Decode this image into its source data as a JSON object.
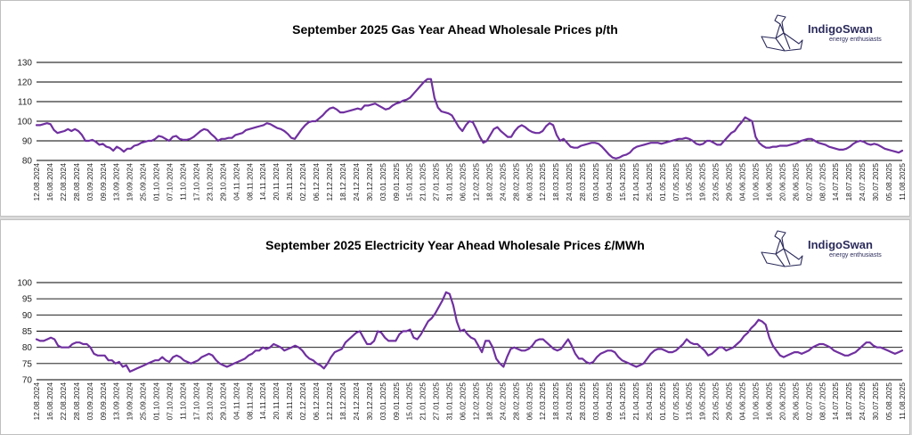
{
  "brand": {
    "name": "IndigoSwan",
    "tagline": "energy enthusiasts",
    "logo_icon": "swan-icon",
    "color": "#2b2b5c"
  },
  "chart_data": [
    {
      "type": "line",
      "title": "September 2025 Gas Year Ahead Wholesale Prices p/th",
      "xlabel": "",
      "ylabel": "",
      "ylim": [
        80,
        130
      ],
      "yticks": [
        80,
        90,
        100,
        110,
        120,
        130
      ],
      "grid": true,
      "line_color": "#7030a0",
      "x_tick_labels": [
        "12.08.2024",
        "16.08.2024",
        "22.08.2024",
        "28.08.2024",
        "03.09.2024",
        "09.09.2024",
        "13.09.2024",
        "19.09.2024",
        "25.09.2024",
        "01.10.2024",
        "07.10.2024",
        "11.10.2024",
        "17.10.2024",
        "23.10.2024",
        "29.10.2024",
        "04.11.2024",
        "08.11.2024",
        "14.11.2024",
        "20.11.2024",
        "26.11.2024",
        "02.12.2024",
        "06.12.2024",
        "12.12.2024",
        "18.12.2024",
        "24.12.2024",
        "30.12.2024",
        "03.01.2025",
        "09.01.2025",
        "15.01.2025",
        "21.01.2025",
        "27.01.2025",
        "31.01.2025",
        "06.02.2025",
        "12.02.2025",
        "18.02.2025",
        "24.02.2025",
        "28.02.2025",
        "06.03.2025",
        "12.03.2025",
        "18.03.2025",
        "24.03.2025",
        "28.03.2025",
        "03.04.2025",
        "09.04.2025",
        "15.04.2025",
        "21.04.2025",
        "25.04.2025",
        "01.05.2025",
        "07.05.2025",
        "13.05.2025",
        "19.05.2025",
        "23.05.2025",
        "29.05.2025",
        "04.06.2025",
        "10.06.2025",
        "16.06.2025",
        "20.06.2025",
        "26.06.2025",
        "02.07.2025",
        "08.07.2025",
        "14.07.2025",
        "18.07.2025",
        "24.07.2025",
        "30.07.2025",
        "05.08.2025",
        "11.08.2025"
      ],
      "series": [
        {
          "values": [
            98,
            98,
            98.5,
            99,
            98.5,
            95.5,
            94,
            94.5,
            95,
            96,
            95,
            96,
            95,
            93,
            90,
            90,
            90.5,
            89.5,
            88,
            88.5,
            87,
            86.5,
            85,
            87,
            86,
            84.5,
            86,
            86,
            87.5,
            88,
            89,
            89.5,
            90,
            90,
            91,
            92.5,
            92,
            91,
            90,
            92,
            92.5,
            91,
            90.5,
            90.5,
            91,
            92,
            93.5,
            95,
            96,
            95.5,
            93.5,
            92,
            90,
            91,
            91,
            91.5,
            91.5,
            93,
            93.5,
            94,
            95.5,
            96,
            96.5,
            97,
            97.5,
            98,
            99,
            98.5,
            97.5,
            96.5,
            96,
            95,
            93.5,
            91.5,
            91,
            93.5,
            96,
            98,
            99.5,
            100,
            100,
            101.5,
            103,
            105,
            106.5,
            107,
            106,
            104.5,
            104.5,
            105,
            105.5,
            106,
            106.5,
            106,
            108,
            108,
            108.5,
            109,
            108,
            107,
            106,
            106.5,
            108,
            109,
            109.5,
            110.5,
            111,
            112,
            114,
            116,
            118,
            120,
            121.5,
            121.5,
            112,
            107,
            105,
            104.5,
            104,
            103,
            100,
            97,
            95,
            98,
            100,
            99.5,
            96,
            92,
            89,
            90,
            93,
            96,
            97,
            95,
            93.5,
            92,
            92,
            95,
            97,
            98,
            97,
            95.5,
            94.5,
            94,
            94,
            95,
            97.5,
            99,
            98,
            93,
            90,
            91,
            89,
            87,
            86.5,
            86.5,
            87.5,
            88,
            88.5,
            89,
            89,
            88.5,
            87,
            85,
            83,
            81.5,
            81,
            81.5,
            82.5,
            83,
            84,
            86,
            87,
            87.5,
            88,
            88.5,
            89,
            89,
            89,
            88.5,
            89,
            89.5,
            90,
            90.5,
            91,
            91,
            91.5,
            91,
            90,
            88.5,
            88,
            88.5,
            90,
            90,
            89,
            88,
            88,
            90,
            92,
            94,
            95,
            97.5,
            99.5,
            102,
            101,
            100,
            92,
            89,
            87.5,
            86.5,
            86.5,
            87,
            87,
            87.5,
            87.5,
            87.5,
            88,
            88.5,
            89,
            90,
            90.5,
            91,
            91,
            90,
            89,
            88.5,
            88,
            87,
            86.5,
            86,
            85.5,
            85.5,
            86,
            87,
            88.5,
            89.5,
            90,
            89.5,
            88.5,
            88,
            88.5,
            88,
            87,
            86,
            85.5,
            85,
            84.5,
            84,
            85
          ]
        }
      ]
    },
    {
      "type": "line",
      "title": "September 2025 Electricity Year Ahead Wholesale Prices £/MWh",
      "xlabel": "",
      "ylabel": "",
      "ylim": [
        70,
        100
      ],
      "yticks": [
        70,
        75,
        80,
        85,
        90,
        95,
        100
      ],
      "grid": true,
      "line_color": "#7030a0",
      "x_tick_labels": [
        "12.08.2024",
        "16.08.2024",
        "22.08.2024",
        "28.08.2024",
        "03.09.2024",
        "09.09.2024",
        "13.09.2024",
        "19.09.2024",
        "25.09.2024",
        "01.10.2024",
        "07.10.2024",
        "11.10.2024",
        "17.10.2024",
        "23.10.2024",
        "29.10.2024",
        "04.11.2024",
        "08.11.2024",
        "14.11.2024",
        "20.11.2024",
        "26.11.2024",
        "02.12.2024",
        "06.12.2024",
        "12.12.2024",
        "18.12.2024",
        "24.12.2024",
        "30.12.2024",
        "03.01.2025",
        "09.01.2025",
        "15.01.2025",
        "21.01.2025",
        "27.01.2025",
        "31.01.2025",
        "06.02.2025",
        "12.02.2025",
        "18.02.2025",
        "24.02.2025",
        "28.02.2025",
        "06.03.2025",
        "12.03.2025",
        "18.03.2025",
        "24.03.2025",
        "28.03.2025",
        "03.04.2025",
        "09.04.2025",
        "15.04.2025",
        "21.04.2025",
        "25.04.2025",
        "01.05.2025",
        "07.05.2025",
        "13.05.2025",
        "19.05.2025",
        "23.05.2025",
        "29.05.2025",
        "04.06.2025",
        "10.06.2025",
        "16.06.2025",
        "20.06.2025",
        "26.06.2025",
        "02.07.2025",
        "08.07.2025",
        "14.07.2025",
        "18.07.2025",
        "24.07.2025",
        "30.07.2025",
        "05.08.2025",
        "11.08.2025"
      ],
      "series": [
        {
          "values": [
            82.5,
            82,
            82,
            82.5,
            83,
            82.5,
            80.5,
            80,
            80,
            80,
            81,
            81.5,
            81.5,
            81,
            81,
            80,
            78,
            77.5,
            77.5,
            77.5,
            76,
            76,
            75,
            75.5,
            74,
            74.5,
            72.5,
            73,
            73.5,
            74,
            74.5,
            75,
            75.5,
            76,
            76,
            77,
            76,
            75.5,
            77,
            77.5,
            77,
            76,
            75.5,
            75,
            75.5,
            76,
            77,
            77.5,
            78,
            77.5,
            76,
            75,
            74.5,
            74,
            74.5,
            75,
            75.5,
            76,
            76.5,
            77.5,
            78,
            79,
            79,
            80,
            79.5,
            80,
            81,
            80.5,
            80,
            79,
            79.5,
            80,
            80.5,
            80,
            79,
            77.5,
            76.5,
            76,
            75,
            74.5,
            73.5,
            75,
            77,
            78.5,
            79,
            79.5,
            81.5,
            82.5,
            83.5,
            84.5,
            85,
            83,
            81,
            81,
            82,
            85,
            84.5,
            83,
            82,
            82,
            82,
            84,
            85,
            85,
            85.5,
            83,
            82.5,
            84,
            86,
            88,
            89,
            90.5,
            92.5,
            94.5,
            97,
            96.5,
            93,
            88,
            85,
            85.5,
            84,
            83,
            82.5,
            80.5,
            78.5,
            82,
            82,
            80,
            76.5,
            75,
            74,
            77,
            79.5,
            80,
            79.5,
            79,
            79,
            79.5,
            80.5,
            82,
            82.5,
            82.5,
            81.5,
            80.5,
            79.5,
            79,
            79.5,
            81,
            82.5,
            80.5,
            78,
            76.5,
            76.5,
            75.5,
            75,
            75.5,
            77,
            78,
            78.5,
            79,
            79,
            78.5,
            77,
            76,
            75.5,
            75,
            74.5,
            74,
            74.5,
            75,
            76.5,
            78,
            79,
            79.5,
            79.5,
            79,
            78.5,
            78.5,
            79,
            80,
            81,
            82.5,
            81.5,
            81,
            81,
            80,
            79,
            77.5,
            78,
            79,
            80,
            80,
            79,
            79.5,
            80,
            81,
            82,
            83.5,
            84.5,
            86,
            87,
            88.5,
            88,
            87,
            83,
            80.5,
            79,
            77.5,
            77,
            77.5,
            78,
            78.5,
            78.5,
            78,
            78.5,
            79,
            80,
            80.5,
            81,
            81,
            80.5,
            80,
            79,
            78.5,
            78,
            77.5,
            77.5,
            78,
            78.5,
            79.5,
            80.5,
            81.5,
            81.5,
            80.5,
            80,
            80,
            79.5,
            79,
            78.5,
            78,
            78.5,
            79
          ]
        }
      ]
    }
  ]
}
